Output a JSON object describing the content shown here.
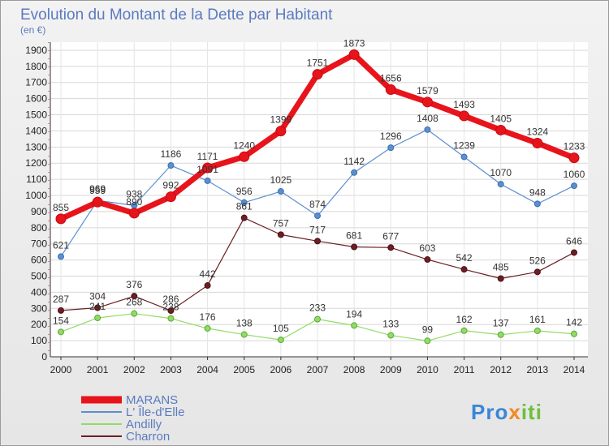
{
  "title": "Evolution du Montant de la Dette par Habitant",
  "subtitle": "(en €)",
  "logo": "Proxiti",
  "chart_data": {
    "type": "line",
    "x": [
      "2000",
      "2001",
      "2002",
      "2003",
      "2004",
      "2005",
      "2006",
      "2007",
      "2008",
      "2009",
      "2010",
      "2011",
      "2012",
      "2013",
      "2014"
    ],
    "yticks": [
      0,
      100,
      200,
      300,
      400,
      500,
      600,
      700,
      800,
      900,
      1000,
      1100,
      1200,
      1300,
      1400,
      1500,
      1600,
      1700,
      1800,
      1900
    ],
    "ylim": [
      0,
      1950
    ],
    "grid": true,
    "legend": "bottom-left",
    "series": [
      {
        "name": "MARANS",
        "color": "#e8141b",
        "values": [
          855,
          959,
          890,
          992,
          1171,
          1240,
          1399,
          1751,
          1873,
          1656,
          1579,
          1493,
          1405,
          1324,
          1233
        ]
      },
      {
        "name": "L' Île-d'Elle",
        "color": "#5b8fd0",
        "values": [
          621,
          969,
          938,
          1186,
          1091,
          956,
          1025,
          874,
          1142,
          1296,
          1408,
          1239,
          1070,
          948,
          1060
        ]
      },
      {
        "name": "Andilly",
        "color": "#90dc64",
        "values": [
          154,
          241,
          268,
          238,
          176,
          138,
          105,
          233,
          194,
          133,
          99,
          162,
          137,
          161,
          142
        ]
      },
      {
        "name": "Charron",
        "color": "#6b1f24",
        "values": [
          287,
          304,
          376,
          286,
          442,
          861,
          757,
          717,
          681,
          677,
          603,
          542,
          485,
          526,
          646
        ]
      }
    ]
  }
}
